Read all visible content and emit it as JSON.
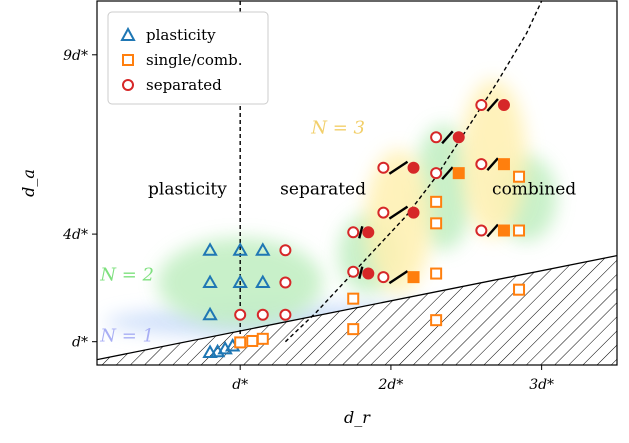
{
  "chart_data": {
    "type": "scatter",
    "title": "",
    "xlabel": "d_r",
    "ylabel": "d_a",
    "xlim": [
      0.05,
      3.5
    ],
    "ylim": [
      0.35,
      10.5
    ],
    "x_ticks": [
      {
        "value": 1,
        "label": "d*"
      },
      {
        "value": 2,
        "label": "2d*"
      },
      {
        "value": 3,
        "label": "3d*"
      }
    ],
    "y_ticks": [
      {
        "value": 1,
        "label": "d*"
      },
      {
        "value": 4,
        "label": "4d*"
      },
      {
        "value": 9,
        "label": "9d*"
      }
    ],
    "legend": {
      "position": "top-left",
      "entries": [
        {
          "label": "plasticity",
          "marker": "triangle",
          "color": "#1f77b4"
        },
        {
          "label": "single/comb.",
          "marker": "square",
          "color": "#ff7f0e"
        },
        {
          "label": "separated",
          "marker": "circle",
          "color": "#d62728"
        }
      ]
    },
    "region_labels": [
      {
        "text": "plasticity",
        "x": 0.65,
        "y": 5.1
      },
      {
        "text": "separated",
        "x": 1.55,
        "y": 5.1
      },
      {
        "text": "combined",
        "x": 2.95,
        "y": 5.1
      }
    ],
    "n_labels": [
      {
        "text": "N = 1",
        "x": 0.25,
        "y": 1.0,
        "color": "#a8aef4"
      },
      {
        "text": "N = 2",
        "x": 0.25,
        "y": 2.7,
        "color": "#7ee07e"
      },
      {
        "text": "N = 3",
        "x": 1.65,
        "y": 6.8,
        "color": "#f2cf6a"
      }
    ],
    "boundaries": {
      "vertical_dashed_x": 1.0,
      "dashed_curve": [
        [
          1.3,
          1.0
        ],
        [
          1.5,
          1.8
        ],
        [
          1.7,
          2.7
        ],
        [
          1.9,
          3.6
        ],
        [
          2.1,
          4.5
        ],
        [
          2.3,
          5.6
        ],
        [
          2.5,
          6.9
        ],
        [
          2.7,
          8.2
        ],
        [
          2.9,
          9.6
        ],
        [
          3.0,
          10.5
        ]
      ],
      "hatched_lower_line": [
        [
          0.05,
          0.5
        ],
        [
          3.5,
          3.4
        ]
      ]
    },
    "series": [
      {
        "name": "plasticity",
        "marker": "triangle",
        "filled": false,
        "color": "#1f77b4",
        "points": [
          [
            0.8,
            0.7
          ],
          [
            0.85,
            0.72
          ],
          [
            0.9,
            0.8
          ],
          [
            0.95,
            0.88
          ],
          [
            0.8,
            1.75
          ],
          [
            0.8,
            2.65
          ],
          [
            0.8,
            3.55
          ],
          [
            1.0,
            2.65
          ],
          [
            1.0,
            3.55
          ],
          [
            1.15,
            2.65
          ],
          [
            1.15,
            3.55
          ]
        ]
      },
      {
        "name": "single/comb.",
        "marker": "square",
        "filled": false,
        "color": "#ff7f0e",
        "points": [
          [
            1.0,
            0.98
          ],
          [
            1.08,
            1.02
          ],
          [
            1.15,
            1.08
          ],
          [
            1.75,
            1.35
          ],
          [
            1.75,
            2.2
          ],
          [
            2.3,
            1.6
          ],
          [
            2.3,
            2.9
          ],
          [
            2.3,
            4.3
          ],
          [
            2.3,
            4.9
          ],
          [
            2.85,
            2.45
          ],
          [
            2.85,
            4.1
          ],
          [
            2.85,
            5.6
          ]
        ]
      },
      {
        "name": "single/comb. (filled)",
        "marker": "square",
        "filled": true,
        "color": "#ff7f0e",
        "points": [
          [
            2.15,
            2.8
          ],
          [
            2.45,
            5.7
          ],
          [
            2.75,
            4.1
          ],
          [
            2.75,
            5.95
          ]
        ]
      },
      {
        "name": "separated",
        "marker": "circle",
        "filled": false,
        "color": "#d62728",
        "points": [
          [
            1.0,
            1.75
          ],
          [
            1.15,
            1.75
          ],
          [
            1.3,
            1.75
          ],
          [
            1.3,
            2.65
          ],
          [
            1.3,
            3.55
          ],
          [
            1.75,
            2.95
          ],
          [
            1.75,
            4.05
          ],
          [
            1.95,
            2.8
          ],
          [
            1.95,
            4.6
          ],
          [
            1.95,
            5.85
          ],
          [
            2.3,
            5.7
          ],
          [
            2.3,
            6.7
          ],
          [
            2.6,
            4.1
          ],
          [
            2.6,
            5.95
          ],
          [
            2.6,
            7.6
          ]
        ]
      },
      {
        "name": "separated (filled)",
        "marker": "circle",
        "filled": true,
        "color": "#d62728",
        "points": [
          [
            1.85,
            2.9
          ],
          [
            1.85,
            4.05
          ],
          [
            2.15,
            4.6
          ],
          [
            2.15,
            5.85
          ],
          [
            2.45,
            6.7
          ],
          [
            2.75,
            7.6
          ]
        ]
      }
    ],
    "pair_links": [
      [
        [
          1.75,
          4.05
        ],
        [
          1.85,
          4.05
        ]
      ],
      [
        [
          1.75,
          2.95
        ],
        [
          1.85,
          2.9
        ]
      ],
      [
        [
          1.95,
          4.6
        ],
        [
          2.15,
          4.6
        ]
      ],
      [
        [
          1.95,
          5.85
        ],
        [
          2.15,
          5.85
        ]
      ],
      [
        [
          1.95,
          2.8
        ],
        [
          2.15,
          2.8
        ]
      ],
      [
        [
          2.3,
          5.7
        ],
        [
          2.45,
          5.7
        ]
      ],
      [
        [
          2.3,
          6.7
        ],
        [
          2.45,
          6.7
        ]
      ],
      [
        [
          2.6,
          7.6
        ],
        [
          2.75,
          7.6
        ]
      ],
      [
        [
          2.6,
          5.95
        ],
        [
          2.75,
          5.95
        ]
      ],
      [
        [
          2.6,
          4.1
        ],
        [
          2.75,
          4.1
        ]
      ]
    ],
    "shaded_regions": [
      {
        "label": "N = 1",
        "color": "#c9dcfa",
        "cx": 1.7,
        "cy": 1.55,
        "rx": 1.6,
        "ry": 0.5
      },
      {
        "label": "N = 2",
        "color": "#bfeec0",
        "cx": 1.0,
        "cy": 2.65,
        "rx": 0.55,
        "ry": 1.25
      },
      {
        "label": "N = 2",
        "color": "#bfeec0",
        "cx": 1.85,
        "cy": 3.45,
        "rx": 0.2,
        "ry": 1.1
      },
      {
        "label": "N = 2",
        "color": "#bfeec0",
        "cx": 2.35,
        "cy": 5.3,
        "rx": 0.2,
        "ry": 1.75
      },
      {
        "label": "N = 2",
        "color": "#bfeec0",
        "cx": 2.9,
        "cy": 5.0,
        "rx": 0.2,
        "ry": 1.2
      },
      {
        "label": "N = 3",
        "color": "#fff0b0",
        "cx": 2.05,
        "cy": 4.35,
        "rx": 0.22,
        "ry": 2.0
      },
      {
        "label": "N = 3",
        "color": "#fff0b0",
        "cx": 2.68,
        "cy": 6.1,
        "rx": 0.22,
        "ry": 2.2
      }
    ],
    "grid": false
  }
}
